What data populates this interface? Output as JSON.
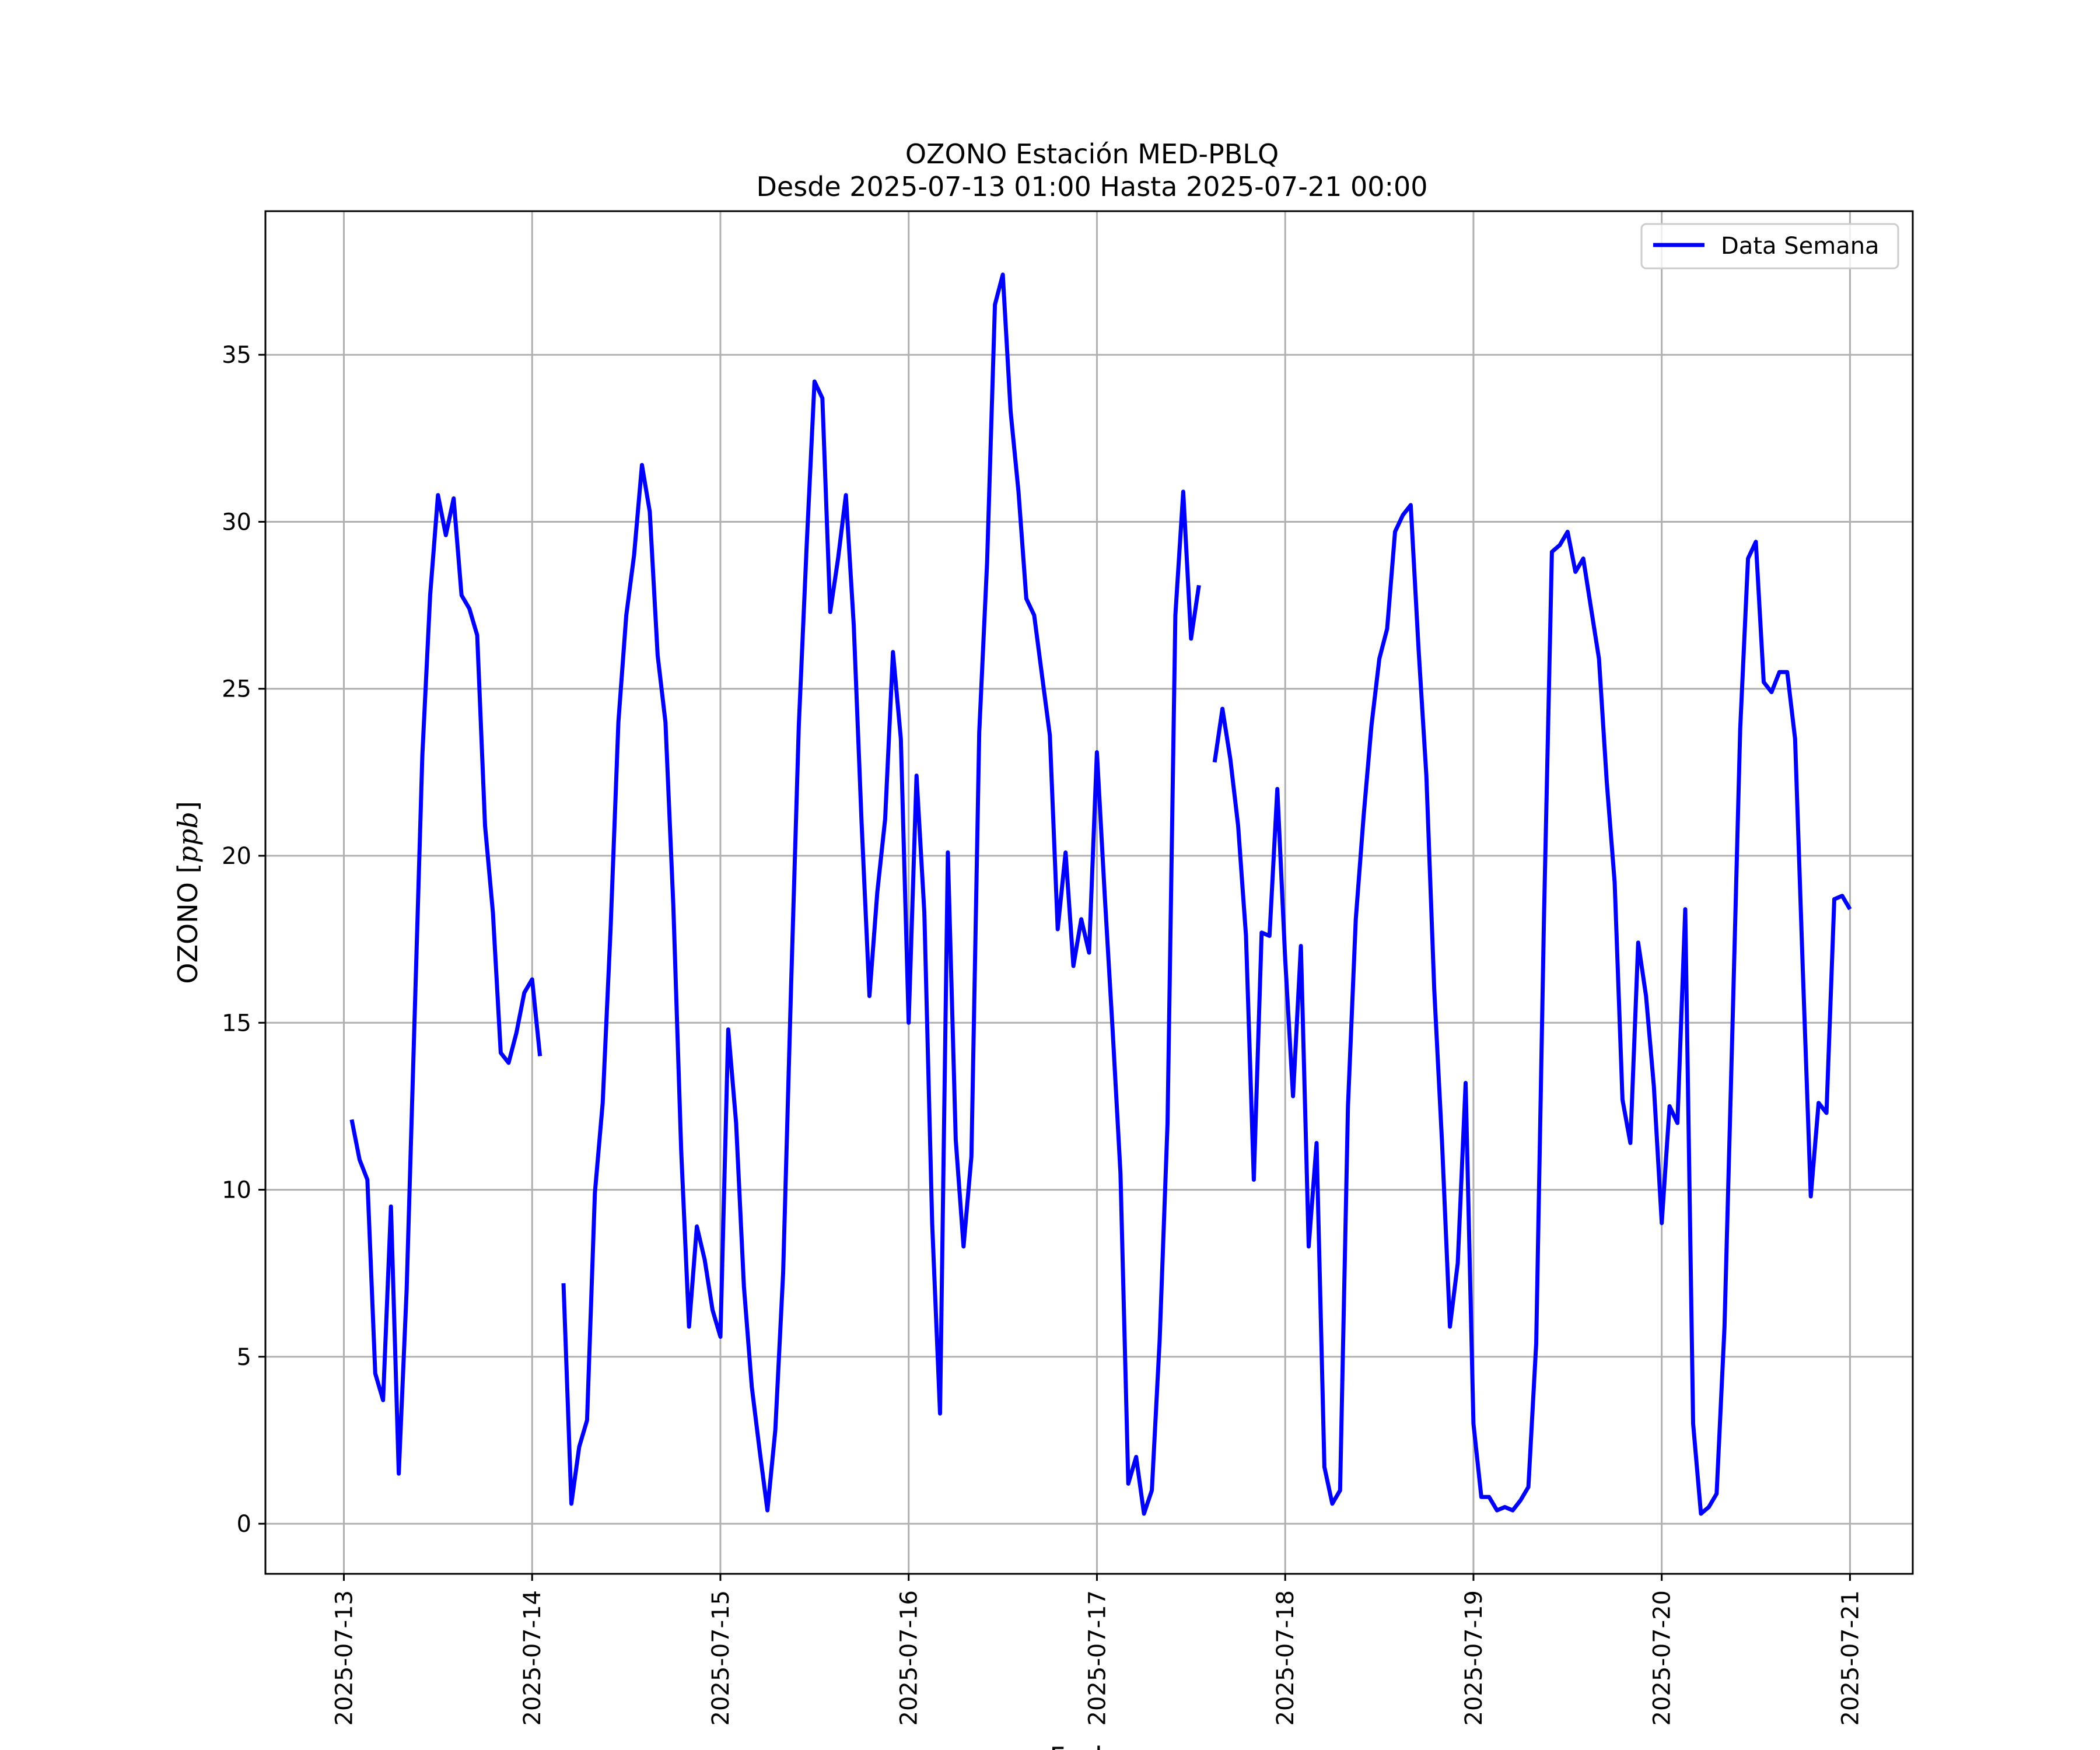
{
  "chart_data": {
    "type": "line",
    "title": "OZONO Estación MED-PBLQ",
    "subtitle": "Desde 2025-07-13 01:00 Hasta 2025-07-21 00:00",
    "xlabel": "Fecha",
    "ylabel_text": "OZONO [",
    "ylabel_unit": "ppb",
    "ylabel_close": "]",
    "x_ticks": [
      "2025-07-13",
      "2025-07-14",
      "2025-07-15",
      "2025-07-16",
      "2025-07-17",
      "2025-07-18",
      "2025-07-19",
      "2025-07-20",
      "2025-07-21"
    ],
    "y_ticks": [
      0,
      5,
      10,
      15,
      20,
      25,
      30,
      35
    ],
    "xlim": [
      "2025-07-12 14:00",
      "2025-07-21 08:00"
    ],
    "ylim": [
      -1.5,
      39.3
    ],
    "grid": true,
    "legend_position": "top-right",
    "series": [
      {
        "name": "Data Semana",
        "color": "#0000ff",
        "points": [
          [
            "2025-07-13 01:00",
            12.1
          ],
          [
            "2025-07-13 02:00",
            10.9
          ],
          [
            "2025-07-13 03:00",
            10.3
          ],
          [
            "2025-07-13 04:00",
            4.5
          ],
          [
            "2025-07-13 05:00",
            3.7
          ],
          [
            "2025-07-13 06:00",
            9.5
          ],
          [
            "2025-07-13 07:00",
            1.5
          ],
          [
            "2025-07-13 08:00",
            7.0
          ],
          [
            "2025-07-13 09:00",
            15.0
          ],
          [
            "2025-07-13 10:00",
            23.0
          ],
          [
            "2025-07-13 11:00",
            27.8
          ],
          [
            "2025-07-13 12:00",
            30.8
          ],
          [
            "2025-07-13 13:00",
            29.6
          ],
          [
            "2025-07-13 14:00",
            30.7
          ],
          [
            "2025-07-13 15:00",
            27.8
          ],
          [
            "2025-07-13 16:00",
            27.4
          ],
          [
            "2025-07-13 17:00",
            26.6
          ],
          [
            "2025-07-13 18:00",
            20.9
          ],
          [
            "2025-07-13 19:00",
            18.3
          ],
          [
            "2025-07-13 20:00",
            14.1
          ],
          [
            "2025-07-13 21:00",
            13.8
          ],
          [
            "2025-07-13 22:00",
            14.7
          ],
          [
            "2025-07-13 23:00",
            15.9
          ],
          [
            "2025-07-14 00:00",
            16.3
          ],
          [
            "2025-07-14 01:00",
            14.0
          ],
          [
            "2025-07-14 04:00",
            null
          ],
          [
            "2025-07-14 04:00",
            7.2
          ],
          [
            "2025-07-14 05:00",
            0.6
          ],
          [
            "2025-07-14 06:00",
            2.3
          ],
          [
            "2025-07-14 07:00",
            3.1
          ],
          [
            "2025-07-14 08:00",
            9.9
          ],
          [
            "2025-07-14 09:00",
            12.6
          ],
          [
            "2025-07-14 10:00",
            17.8
          ],
          [
            "2025-07-14 11:00",
            24.0
          ],
          [
            "2025-07-14 12:00",
            27.2
          ],
          [
            "2025-07-14 13:00",
            29.0
          ],
          [
            "2025-07-14 14:00",
            31.7
          ],
          [
            "2025-07-14 15:00",
            30.3
          ],
          [
            "2025-07-14 16:00",
            26.0
          ],
          [
            "2025-07-14 17:00",
            24.0
          ],
          [
            "2025-07-14 18:00",
            18.5
          ],
          [
            "2025-07-14 19:00",
            11.2
          ],
          [
            "2025-07-14 20:00",
            5.9
          ],
          [
            "2025-07-14 21:00",
            8.9
          ],
          [
            "2025-07-14 22:00",
            7.9
          ],
          [
            "2025-07-14 23:00",
            6.4
          ],
          [
            "2025-07-15 00:00",
            5.6
          ],
          [
            "2025-07-15 01:00",
            14.8
          ],
          [
            "2025-07-15 02:00",
            12.0
          ],
          [
            "2025-07-15 03:00",
            7.1
          ],
          [
            "2025-07-15 04:00",
            4.1
          ],
          [
            "2025-07-15 05:00",
            2.2
          ],
          [
            "2025-07-15 06:00",
            0.4
          ],
          [
            "2025-07-15 07:00",
            2.8
          ],
          [
            "2025-07-15 08:00",
            7.5
          ],
          [
            "2025-07-15 09:00",
            16.0
          ],
          [
            "2025-07-15 10:00",
            23.9
          ],
          [
            "2025-07-15 11:00",
            29.3
          ],
          [
            "2025-07-15 12:00",
            34.2
          ],
          [
            "2025-07-15 13:00",
            33.7
          ],
          [
            "2025-07-15 14:00",
            27.3
          ],
          [
            "2025-07-15 15:00",
            28.9
          ],
          [
            "2025-07-15 16:00",
            30.8
          ],
          [
            "2025-07-15 17:00",
            26.9
          ],
          [
            "2025-07-15 18:00",
            21.0
          ],
          [
            "2025-07-15 19:00",
            15.8
          ],
          [
            "2025-07-15 20:00",
            18.9
          ],
          [
            "2025-07-15 21:00",
            21.1
          ],
          [
            "2025-07-15 22:00",
            26.1
          ],
          [
            "2025-07-15 23:00",
            23.5
          ],
          [
            "2025-07-16 00:00",
            15.0
          ],
          [
            "2025-07-16 01:00",
            22.4
          ],
          [
            "2025-07-16 02:00",
            18.3
          ],
          [
            "2025-07-16 03:00",
            9.0
          ],
          [
            "2025-07-16 04:00",
            3.3
          ],
          [
            "2025-07-16 05:00",
            20.1
          ],
          [
            "2025-07-16 06:00",
            11.5
          ],
          [
            "2025-07-16 07:00",
            8.3
          ],
          [
            "2025-07-16 08:00",
            11.0
          ],
          [
            "2025-07-16 09:00",
            23.7
          ],
          [
            "2025-07-16 10:00",
            28.8
          ],
          [
            "2025-07-16 11:00",
            36.5
          ],
          [
            "2025-07-16 12:00",
            37.4
          ],
          [
            "2025-07-16 13:00",
            33.3
          ],
          [
            "2025-07-16 14:00",
            30.9
          ],
          [
            "2025-07-16 15:00",
            27.7
          ],
          [
            "2025-07-16 16:00",
            27.2
          ],
          [
            "2025-07-16 17:00",
            25.4
          ],
          [
            "2025-07-16 18:00",
            23.6
          ],
          [
            "2025-07-16 19:00",
            17.8
          ],
          [
            "2025-07-16 20:00",
            20.1
          ],
          [
            "2025-07-16 21:00",
            16.7
          ],
          [
            "2025-07-16 22:00",
            18.1
          ],
          [
            "2025-07-16 23:00",
            17.1
          ],
          [
            "2025-07-17 00:00",
            23.1
          ],
          [
            "2025-07-17 01:00",
            18.8
          ],
          [
            "2025-07-17 02:00",
            14.8
          ],
          [
            "2025-07-17 03:00",
            10.5
          ],
          [
            "2025-07-17 04:00",
            1.2
          ],
          [
            "2025-07-17 05:00",
            2.0
          ],
          [
            "2025-07-17 06:00",
            0.3
          ],
          [
            "2025-07-17 07:00",
            1.0
          ],
          [
            "2025-07-17 08:00",
            5.5
          ],
          [
            "2025-07-17 09:00",
            12.0
          ],
          [
            "2025-07-17 10:00",
            27.2
          ],
          [
            "2025-07-17 11:00",
            30.9
          ],
          [
            "2025-07-17 12:00",
            26.5
          ],
          [
            "2025-07-17 13:00",
            28.1
          ],
          [
            "2025-07-17 14:00",
            null
          ],
          [
            "2025-07-17 15:00",
            22.8
          ],
          [
            "2025-07-17 16:00",
            24.4
          ],
          [
            "2025-07-17 17:00",
            22.9
          ],
          [
            "2025-07-17 18:00",
            20.9
          ],
          [
            "2025-07-17 19:00",
            17.6
          ],
          [
            "2025-07-17 20:00",
            10.3
          ],
          [
            "2025-07-17 21:00",
            17.7
          ],
          [
            "2025-07-17 22:00",
            17.6
          ],
          [
            "2025-07-17 23:00",
            22.0
          ],
          [
            "2025-07-18 00:00",
            16.9
          ],
          [
            "2025-07-18 01:00",
            12.8
          ],
          [
            "2025-07-18 02:00",
            17.3
          ],
          [
            "2025-07-18 03:00",
            8.3
          ],
          [
            "2025-07-18 04:00",
            11.4
          ],
          [
            "2025-07-18 05:00",
            1.7
          ],
          [
            "2025-07-18 06:00",
            0.6
          ],
          [
            "2025-07-18 07:00",
            1.0
          ],
          [
            "2025-07-18 08:00",
            12.5
          ],
          [
            "2025-07-18 09:00",
            18.1
          ],
          [
            "2025-07-18 10:00",
            21.2
          ],
          [
            "2025-07-18 11:00",
            23.9
          ],
          [
            "2025-07-18 12:00",
            25.9
          ],
          [
            "2025-07-18 13:00",
            26.8
          ],
          [
            "2025-07-18 14:00",
            29.7
          ],
          [
            "2025-07-18 15:00",
            30.2
          ],
          [
            "2025-07-18 16:00",
            30.5
          ],
          [
            "2025-07-18 17:00",
            26.2
          ],
          [
            "2025-07-18 18:00",
            22.4
          ],
          [
            "2025-07-18 19:00",
            16.0
          ],
          [
            "2025-07-18 20:00",
            11.4
          ],
          [
            "2025-07-18 21:00",
            5.9
          ],
          [
            "2025-07-18 22:00",
            7.8
          ],
          [
            "2025-07-18 23:00",
            13.2
          ],
          [
            "2025-07-19 00:00",
            3.0
          ],
          [
            "2025-07-19 01:00",
            0.8
          ],
          [
            "2025-07-19 02:00",
            0.8
          ],
          [
            "2025-07-19 03:00",
            0.4
          ],
          [
            "2025-07-19 04:00",
            0.5
          ],
          [
            "2025-07-19 05:00",
            0.4
          ],
          [
            "2025-07-19 06:00",
            0.7
          ],
          [
            "2025-07-19 07:00",
            1.1
          ],
          [
            "2025-07-19 08:00",
            5.4
          ],
          [
            "2025-07-19 09:00",
            18.3
          ],
          [
            "2025-07-19 10:00",
            29.1
          ],
          [
            "2025-07-19 11:00",
            29.3
          ],
          [
            "2025-07-19 12:00",
            29.7
          ],
          [
            "2025-07-19 13:00",
            28.5
          ],
          [
            "2025-07-19 14:00",
            28.9
          ],
          [
            "2025-07-19 15:00",
            27.4
          ],
          [
            "2025-07-19 16:00",
            25.9
          ],
          [
            "2025-07-19 17:00",
            22.2
          ],
          [
            "2025-07-19 18:00",
            19.2
          ],
          [
            "2025-07-19 19:00",
            12.7
          ],
          [
            "2025-07-19 20:00",
            11.4
          ],
          [
            "2025-07-19 21:00",
            17.4
          ],
          [
            "2025-07-19 22:00",
            15.8
          ],
          [
            "2025-07-19 23:00",
            13.1
          ],
          [
            "2025-07-20 00:00",
            9.0
          ],
          [
            "2025-07-20 01:00",
            12.5
          ],
          [
            "2025-07-20 02:00",
            12.0
          ],
          [
            "2025-07-20 03:00",
            18.4
          ],
          [
            "2025-07-20 04:00",
            3.0
          ],
          [
            "2025-07-20 05:00",
            0.3
          ],
          [
            "2025-07-20 06:00",
            0.5
          ],
          [
            "2025-07-20 07:00",
            0.9
          ],
          [
            "2025-07-20 08:00",
            5.9
          ],
          [
            "2025-07-20 09:00",
            14.7
          ],
          [
            "2025-07-20 10:00",
            23.8
          ],
          [
            "2025-07-20 11:00",
            28.9
          ],
          [
            "2025-07-20 12:00",
            29.4
          ],
          [
            "2025-07-20 13:00",
            25.2
          ],
          [
            "2025-07-20 14:00",
            24.9
          ],
          [
            "2025-07-20 15:00",
            25.5
          ],
          [
            "2025-07-20 16:00",
            25.5
          ],
          [
            "2025-07-20 17:00",
            23.5
          ],
          [
            "2025-07-20 18:00",
            16.5
          ],
          [
            "2025-07-20 19:00",
            9.8
          ],
          [
            "2025-07-20 20:00",
            12.6
          ],
          [
            "2025-07-20 21:00",
            12.3
          ],
          [
            "2025-07-20 22:00",
            18.7
          ],
          [
            "2025-07-20 23:00",
            18.8
          ],
          [
            "2025-07-21 00:00",
            18.4
          ]
        ]
      }
    ]
  }
}
